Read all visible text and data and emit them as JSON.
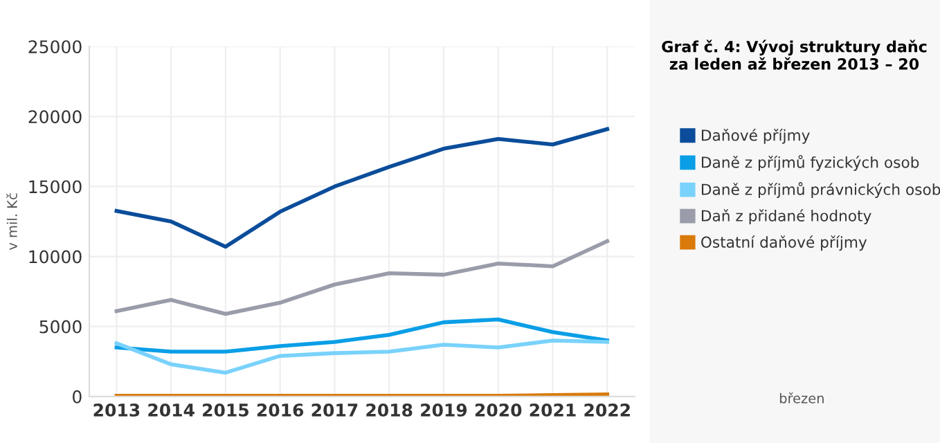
{
  "chart_data": {
    "type": "line",
    "title": "Graf č. 4: Vývoj struktury daňc\nza leden až březen 2013 – 20",
    "ylabel": "v mil. Kč",
    "categories": [
      "2013",
      "2014",
      "2015",
      "2016",
      "2017",
      "2018",
      "2019",
      "2020",
      "2021",
      "2022"
    ],
    "series": [
      {
        "name": "Daňové příjmy",
        "color": "#0b4d9a",
        "values": [
          13250,
          12500,
          10700,
          13200,
          15000,
          16400,
          17700,
          18400,
          18000,
          19100
        ]
      },
      {
        "name": "Daně z příjmů fyzických osob",
        "color": "#0a9ee6",
        "values": [
          3500,
          3200,
          3200,
          3600,
          3900,
          4400,
          5300,
          5500,
          4600,
          4000
        ]
      },
      {
        "name": "Daně z příjmů právnických osob",
        "color": "#79d2fb",
        "values": [
          3800,
          2300,
          1700,
          2900,
          3100,
          3200,
          3700,
          3500,
          4000,
          3900
        ]
      },
      {
        "name": "Daň z přidané hodnoty",
        "color": "#9a9caa",
        "values": [
          6100,
          6900,
          5900,
          6700,
          8000,
          8800,
          8700,
          9500,
          9300,
          11100
        ]
      },
      {
        "name": "Ostatní daňové příjmy",
        "color": "#d97a0b",
        "values": [
          50,
          50,
          50,
          50,
          50,
          50,
          50,
          50,
          100,
          150
        ]
      }
    ],
    "ylim": [
      0,
      25000
    ],
    "yticks": [
      0,
      5000,
      10000,
      15000,
      20000,
      25000
    ],
    "grid": true,
    "legend": "right",
    "marker": "none",
    "line_style": "solid",
    "annotations": [
      "březen"
    ]
  }
}
